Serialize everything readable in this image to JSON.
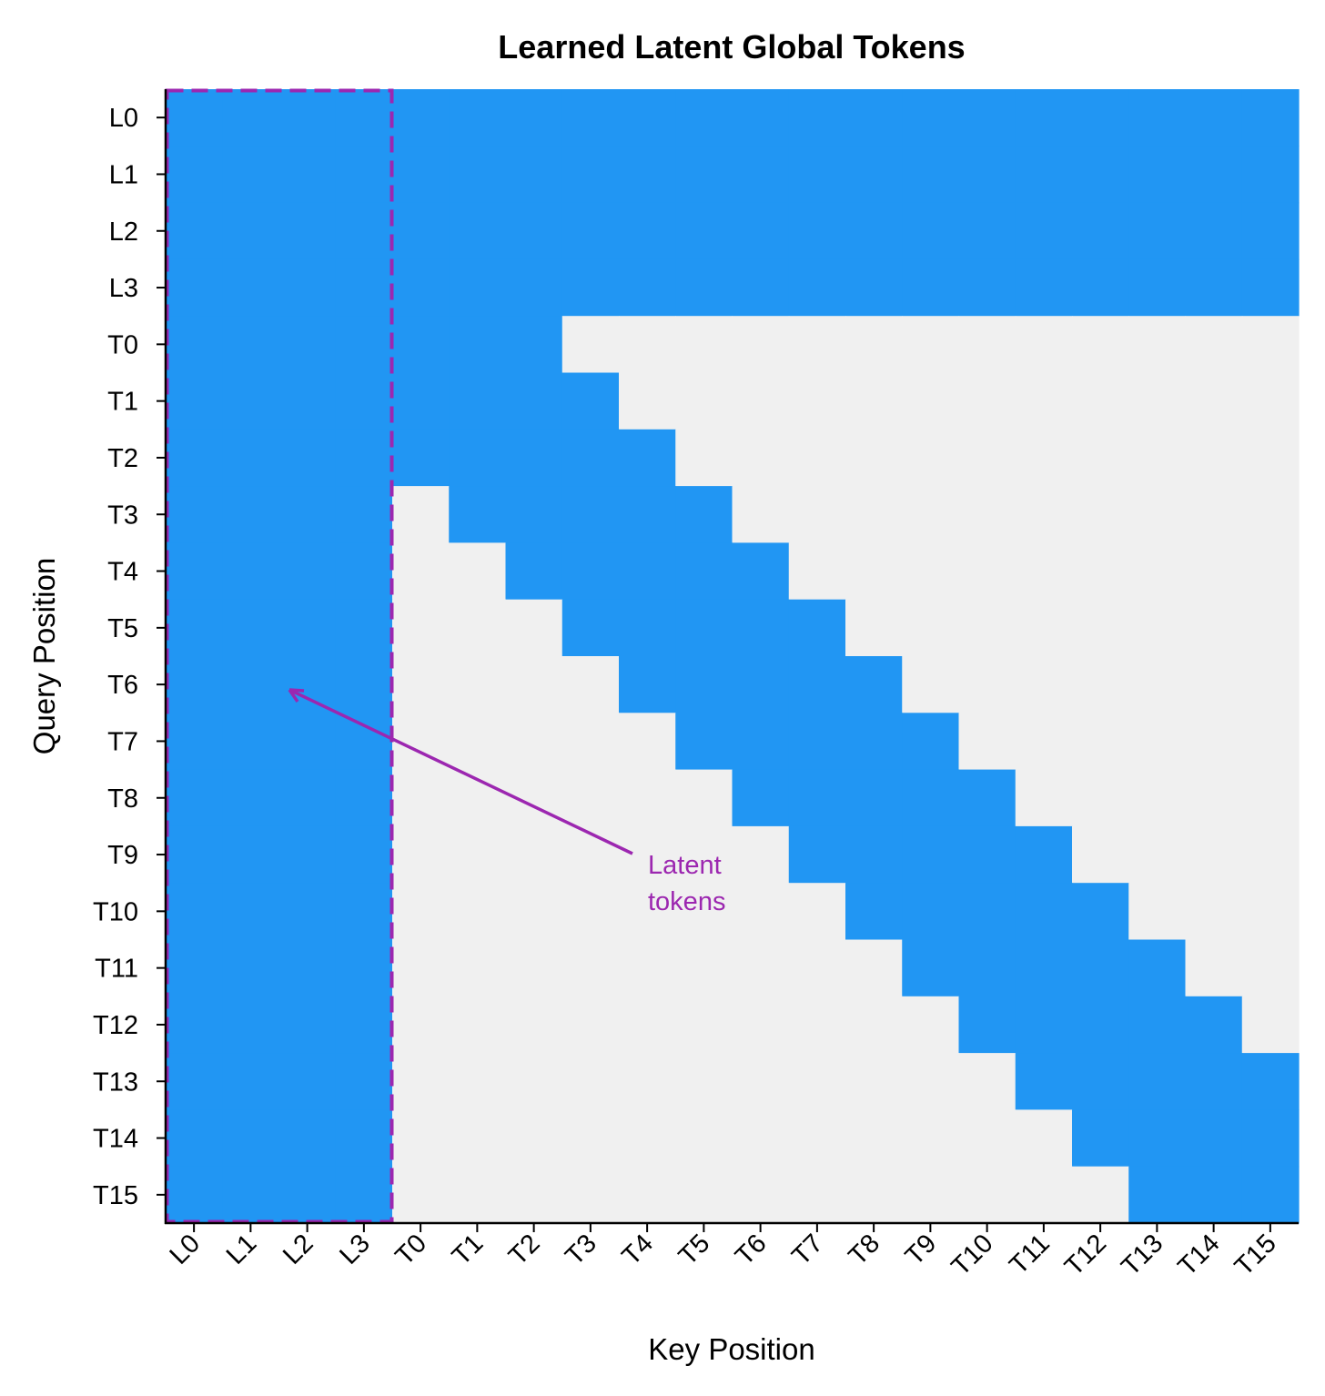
{
  "chart_data": {
    "type": "heatmap",
    "title": "Learned Latent Global Tokens",
    "xlabel": "Key Position",
    "ylabel": "Query Position",
    "x_categories": [
      "L0",
      "L1",
      "L2",
      "L3",
      "T0",
      "T1",
      "T2",
      "T3",
      "T4",
      "T5",
      "T6",
      "T7",
      "T8",
      "T9",
      "T10",
      "T11",
      "T12",
      "T13",
      "T14",
      "T15"
    ],
    "y_categories": [
      "L0",
      "L1",
      "L2",
      "L3",
      "T0",
      "T1",
      "T2",
      "T3",
      "T4",
      "T5",
      "T6",
      "T7",
      "T8",
      "T9",
      "T10",
      "T11",
      "T12",
      "T13",
      "T14",
      "T15"
    ],
    "values": [
      [
        1,
        1,
        1,
        1,
        1,
        1,
        1,
        1,
        1,
        1,
        1,
        1,
        1,
        1,
        1,
        1,
        1,
        1,
        1,
        1
      ],
      [
        1,
        1,
        1,
        1,
        1,
        1,
        1,
        1,
        1,
        1,
        1,
        1,
        1,
        1,
        1,
        1,
        1,
        1,
        1,
        1
      ],
      [
        1,
        1,
        1,
        1,
        1,
        1,
        1,
        1,
        1,
        1,
        1,
        1,
        1,
        1,
        1,
        1,
        1,
        1,
        1,
        1
      ],
      [
        1,
        1,
        1,
        1,
        1,
        1,
        1,
        1,
        1,
        1,
        1,
        1,
        1,
        1,
        1,
        1,
        1,
        1,
        1,
        1
      ],
      [
        1,
        1,
        1,
        1,
        1,
        1,
        1,
        0,
        0,
        0,
        0,
        0,
        0,
        0,
        0,
        0,
        0,
        0,
        0,
        0
      ],
      [
        1,
        1,
        1,
        1,
        1,
        1,
        1,
        1,
        0,
        0,
        0,
        0,
        0,
        0,
        0,
        0,
        0,
        0,
        0,
        0
      ],
      [
        1,
        1,
        1,
        1,
        1,
        1,
        1,
        1,
        1,
        0,
        0,
        0,
        0,
        0,
        0,
        0,
        0,
        0,
        0,
        0
      ],
      [
        1,
        1,
        1,
        1,
        0,
        1,
        1,
        1,
        1,
        1,
        0,
        0,
        0,
        0,
        0,
        0,
        0,
        0,
        0,
        0
      ],
      [
        1,
        1,
        1,
        1,
        0,
        0,
        1,
        1,
        1,
        1,
        1,
        0,
        0,
        0,
        0,
        0,
        0,
        0,
        0,
        0
      ],
      [
        1,
        1,
        1,
        1,
        0,
        0,
        0,
        1,
        1,
        1,
        1,
        1,
        0,
        0,
        0,
        0,
        0,
        0,
        0,
        0
      ],
      [
        1,
        1,
        1,
        1,
        0,
        0,
        0,
        0,
        1,
        1,
        1,
        1,
        1,
        0,
        0,
        0,
        0,
        0,
        0,
        0
      ],
      [
        1,
        1,
        1,
        1,
        0,
        0,
        0,
        0,
        0,
        1,
        1,
        1,
        1,
        1,
        0,
        0,
        0,
        0,
        0,
        0
      ],
      [
        1,
        1,
        1,
        1,
        0,
        0,
        0,
        0,
        0,
        0,
        1,
        1,
        1,
        1,
        1,
        0,
        0,
        0,
        0,
        0
      ],
      [
        1,
        1,
        1,
        1,
        0,
        0,
        0,
        0,
        0,
        0,
        0,
        1,
        1,
        1,
        1,
        1,
        0,
        0,
        0,
        0
      ],
      [
        1,
        1,
        1,
        1,
        0,
        0,
        0,
        0,
        0,
        0,
        0,
        0,
        1,
        1,
        1,
        1,
        1,
        0,
        0,
        0
      ],
      [
        1,
        1,
        1,
        1,
        0,
        0,
        0,
        0,
        0,
        0,
        0,
        0,
        0,
        1,
        1,
        1,
        1,
        1,
        0,
        0
      ],
      [
        1,
        1,
        1,
        1,
        0,
        0,
        0,
        0,
        0,
        0,
        0,
        0,
        0,
        0,
        1,
        1,
        1,
        1,
        1,
        0
      ],
      [
        1,
        1,
        1,
        1,
        0,
        0,
        0,
        0,
        0,
        0,
        0,
        0,
        0,
        0,
        0,
        1,
        1,
        1,
        1,
        1
      ],
      [
        1,
        1,
        1,
        1,
        0,
        0,
        0,
        0,
        0,
        0,
        0,
        0,
        0,
        0,
        0,
        0,
        1,
        1,
        1,
        1
      ],
      [
        1,
        1,
        1,
        1,
        0,
        0,
        0,
        0,
        0,
        0,
        0,
        0,
        0,
        0,
        0,
        0,
        0,
        1,
        1,
        1
      ]
    ],
    "colors": {
      "attend": "#2196F3",
      "masked": "#F0F0F0",
      "highlight": "#9C27B0"
    },
    "highlight_region": {
      "columns": [
        "L0",
        "L1",
        "L2",
        "L3"
      ],
      "style": "dashed"
    },
    "annotation": {
      "text_line1": "Latent",
      "text_line2": "tokens",
      "points_to": [
        "L2",
        "T6"
      ]
    },
    "grid": false
  }
}
